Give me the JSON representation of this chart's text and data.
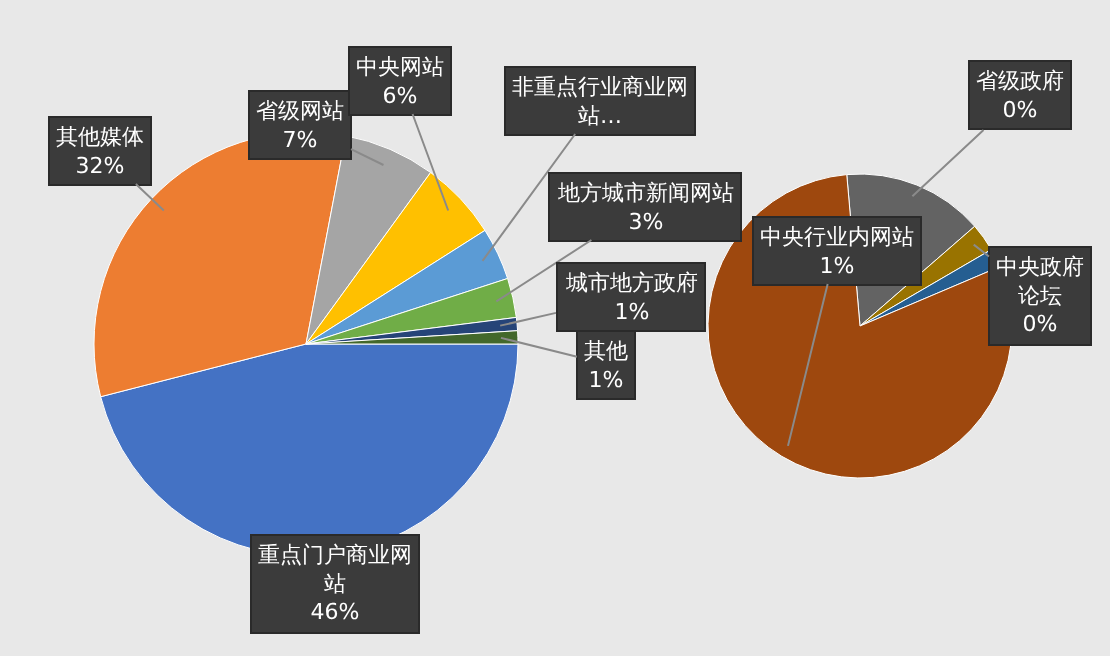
{
  "chart_data": [
    {
      "type": "pie",
      "categories": [
        "重点门户商业网站",
        "其他媒体",
        "省级网站",
        "中央网站",
        "非重点行业商业网站…",
        "地方城市新闻网站",
        "城市地方政府",
        "其他"
      ],
      "values": [
        46,
        32,
        7,
        6,
        4,
        3,
        1,
        1
      ],
      "colors": [
        "#4472c4",
        "#ed7d31",
        "#a5a5a5",
        "#ffc000",
        "#5b9bd5",
        "#70ad47",
        "#264478",
        "#43682b"
      ],
      "value_labels": [
        "46%",
        "32%",
        "7%",
        "6%",
        null,
        "3%",
        "1%",
        "1%"
      ]
    },
    {
      "type": "pie",
      "categories": [
        "省级政府",
        "中央政府论坛",
        null,
        "中央行业内网站"
      ],
      "values": [
        0.15,
        0.03,
        0.02,
        0.8
      ],
      "colors": [
        "#636363",
        "#997300",
        "#255e91",
        "#9e480e"
      ],
      "value_labels": [
        "0%",
        "0%",
        null,
        "1%"
      ]
    }
  ]
}
